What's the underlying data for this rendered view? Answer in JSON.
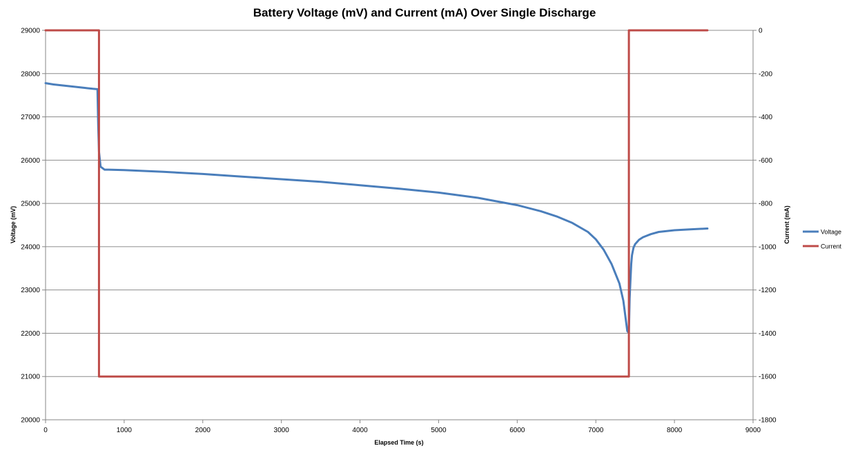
{
  "chart_data": {
    "type": "line",
    "title": "Battery Voltage (mV) and Current (mA) Over Single Discharge",
    "xlabel": "Elapsed Time (s)",
    "ylabel": "Voltage (mV)",
    "y2label": "Current (mA)",
    "xlim": [
      0,
      9000
    ],
    "ylim": [
      20000,
      29000
    ],
    "y2lim": [
      -1800,
      0
    ],
    "xticks": [
      "0",
      "1000",
      "2000",
      "3000",
      "4000",
      "5000",
      "6000",
      "7000",
      "8000",
      "9000"
    ],
    "yticks": [
      "20000",
      "21000",
      "22000",
      "23000",
      "24000",
      "25000",
      "26000",
      "27000",
      "28000",
      "29000"
    ],
    "y2ticks": [
      "-1800",
      "-1600",
      "-1400",
      "-1200",
      "-1000",
      "-800",
      "-600",
      "-400",
      "-200",
      "0"
    ],
    "grid": "horizontal",
    "legend": "right",
    "series": [
      {
        "name": "Voltage",
        "axis": "left",
        "color": "#4a7ebb",
        "x": [
          0,
          100,
          200,
          300,
          400,
          500,
          600,
          660,
          670,
          680,
          700,
          750,
          800,
          1000,
          1500,
          2000,
          2500,
          3000,
          3500,
          4000,
          4500,
          5000,
          5500,
          6000,
          6300,
          6500,
          6700,
          6900,
          7000,
          7100,
          7200,
          7300,
          7350,
          7400,
          7420,
          7430,
          7440,
          7450,
          7460,
          7470,
          7480,
          7500,
          7550,
          7600,
          7700,
          7800,
          8000,
          8200,
          8420
        ],
        "y": [
          27780,
          27750,
          27730,
          27710,
          27690,
          27670,
          27650,
          27640,
          26800,
          26200,
          25850,
          25780,
          25780,
          25770,
          25730,
          25680,
          25620,
          25560,
          25500,
          25420,
          25340,
          25250,
          25130,
          24960,
          24820,
          24700,
          24550,
          24340,
          24170,
          23930,
          23600,
          23150,
          22750,
          22050,
          22010,
          22800,
          23200,
          23600,
          23800,
          23900,
          23980,
          24060,
          24160,
          24220,
          24290,
          24340,
          24380,
          24400,
          24420
        ]
      },
      {
        "name": "Current",
        "axis": "right",
        "color": "#be4b48",
        "x": [
          0,
          680,
          680,
          7420,
          7420,
          8420
        ],
        "y": [
          0,
          0,
          -1600,
          -1600,
          0,
          0
        ]
      }
    ]
  }
}
